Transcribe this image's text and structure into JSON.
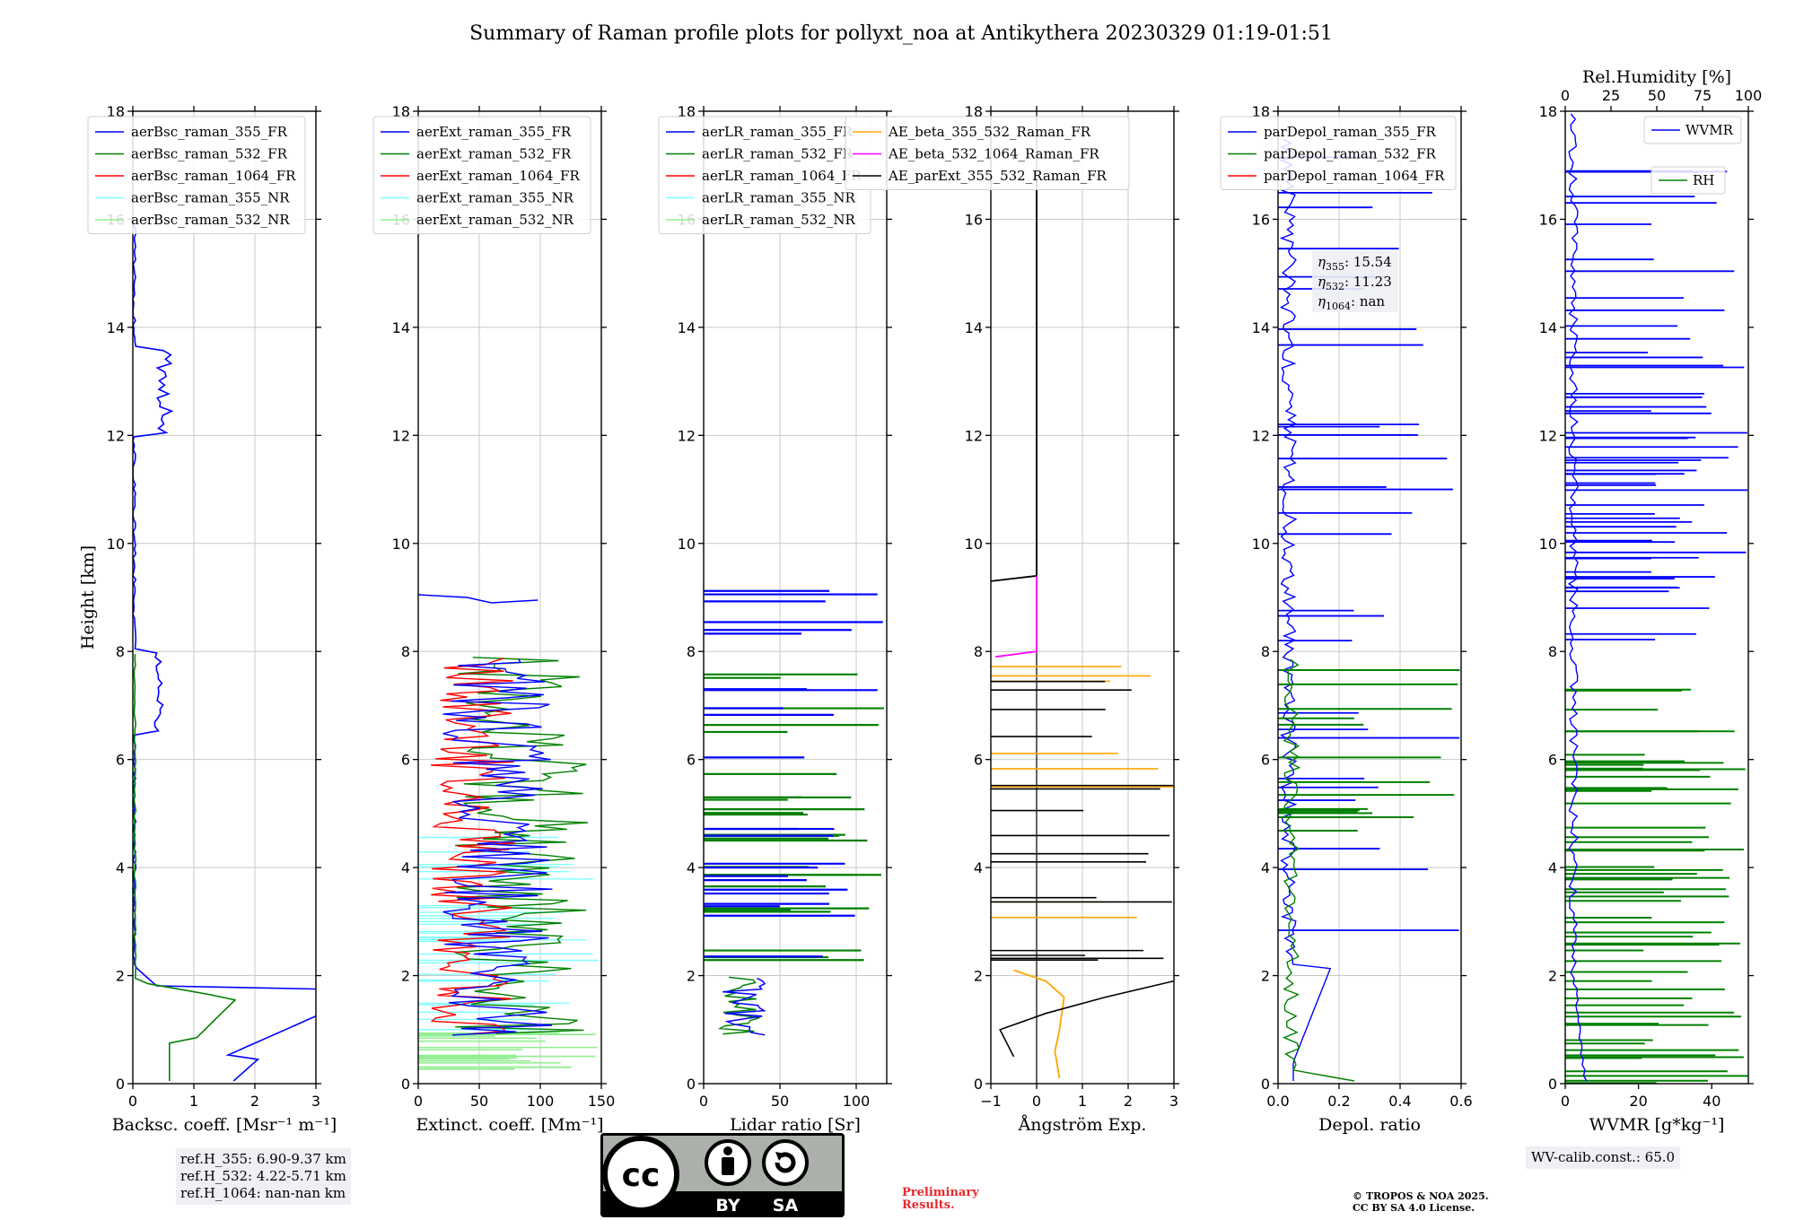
{
  "title": "Summary of Raman profile plots for pollyxt_noa at Antikythera 20230329 01:19-01:51",
  "chart_data": [
    {
      "type": "line",
      "id": "bsc",
      "xlabel": "Backsc. coeff. [Msr⁻¹ m⁻¹]",
      "ylabel": "Height [km]",
      "xlim": [
        0,
        3
      ],
      "ylim": [
        0,
        18
      ],
      "xticks": [
        "0",
        "1",
        "2",
        "3"
      ],
      "yticks": [
        "0",
        "2",
        "4",
        "6",
        "8",
        "10",
        "12",
        "14",
        "16",
        "18"
      ],
      "grid": true,
      "legend_position": "upper-left",
      "series": [
        {
          "name": "aerBsc_raman_355_FR",
          "color": "#0000ff"
        },
        {
          "name": "aerBsc_raman_532_FR",
          "color": "#008000"
        },
        {
          "name": "aerBsc_raman_1064_FR",
          "color": "#ff0000"
        },
        {
          "name": "aerBsc_raman_355_NR",
          "color": "#80ffff"
        },
        {
          "name": "aerBsc_raman_532_NR",
          "color": "#90ee90"
        }
      ]
    },
    {
      "type": "line",
      "id": "ext",
      "xlabel": "Extinct. coeff. [Mm⁻¹]",
      "xlim": [
        0,
        150
      ],
      "ylim": [
        0,
        18
      ],
      "xticks": [
        "0",
        "50",
        "100",
        "150"
      ],
      "yticks": [
        "0",
        "2",
        "4",
        "6",
        "8",
        "10",
        "12",
        "14",
        "16",
        "18"
      ],
      "grid": true,
      "legend_position": "upper-left",
      "series": [
        {
          "name": "aerExt_raman_355_FR",
          "color": "#0000ff"
        },
        {
          "name": "aerExt_raman_532_FR",
          "color": "#008000"
        },
        {
          "name": "aerExt_raman_1064_FR",
          "color": "#ff0000"
        },
        {
          "name": "aerExt_raman_355_NR",
          "color": "#80ffff"
        },
        {
          "name": "aerExt_raman_532_NR",
          "color": "#90ee90"
        }
      ]
    },
    {
      "type": "line",
      "id": "lr",
      "xlabel": "Lidar ratio [Sr]",
      "xlim": [
        0,
        120
      ],
      "ylim": [
        0,
        18
      ],
      "xticks": [
        "0",
        "50",
        "100"
      ],
      "yticks": [
        "0",
        "2",
        "4",
        "6",
        "8",
        "10",
        "12",
        "14",
        "16",
        "18"
      ],
      "grid": true,
      "legend_position": "upper-left",
      "series": [
        {
          "name": "aerLR_raman_355_FR",
          "color": "#0000ff"
        },
        {
          "name": "aerLR_raman_532_FR",
          "color": "#008000"
        },
        {
          "name": "aerLR_raman_1064_FR",
          "color": "#ff0000"
        },
        {
          "name": "aerLR_raman_355_NR",
          "color": "#80ffff"
        },
        {
          "name": "aerLR_raman_532_NR",
          "color": "#90ee90"
        }
      ]
    },
    {
      "type": "line",
      "id": "ae",
      "xlabel": "Ångström Exp.",
      "xlim": [
        -1,
        3
      ],
      "ylim": [
        0,
        18
      ],
      "xticks": [
        "−1",
        "0",
        "1",
        "2",
        "3"
      ],
      "yticks": [
        "0",
        "2",
        "4",
        "6",
        "8",
        "10",
        "12",
        "14",
        "16",
        "18"
      ],
      "grid": true,
      "legend_position": "upper-left",
      "series": [
        {
          "name": "AE_beta_355_532_Raman_FR",
          "color": "#ffa500"
        },
        {
          "name": "AE_beta_532_1064_Raman_FR",
          "color": "#ff00ff"
        },
        {
          "name": "AE_parExt_355_532_Raman_FR",
          "color": "#000000"
        }
      ]
    },
    {
      "type": "line",
      "id": "depol",
      "xlabel": "Depol. ratio",
      "xlim": [
        0,
        0.6
      ],
      "ylim": [
        0,
        18
      ],
      "xticks": [
        "0.0",
        "0.2",
        "0.4",
        "0.6"
      ],
      "yticks": [
        "0",
        "2",
        "4",
        "6",
        "8",
        "10",
        "12",
        "14",
        "16",
        "18"
      ],
      "grid": true,
      "legend_position": "upper-left",
      "series": [
        {
          "name": "parDepol_raman_355_FR",
          "color": "#0000ff"
        },
        {
          "name": "parDepol_raman_532_FR",
          "color": "#008000"
        },
        {
          "name": "parDepol_raman_1064_FR",
          "color": "#ff0000"
        }
      ],
      "eta": {
        "eta355": "15.54",
        "eta532": "11.23",
        "eta1064": "nan"
      }
    },
    {
      "type": "line",
      "id": "wv",
      "xlabel": "WVMR [g*kg⁻¹]",
      "xlabel_top": "Rel.Humidity [%]",
      "xlim": [
        0,
        50
      ],
      "xlim_top": [
        0,
        100
      ],
      "ylim": [
        0,
        18
      ],
      "xticks": [
        "0",
        "20",
        "40"
      ],
      "xticks_top": [
        "0",
        "25",
        "50",
        "75",
        "100"
      ],
      "yticks": [
        "0",
        "2",
        "4",
        "6",
        "8",
        "10",
        "12",
        "14",
        "16",
        "18"
      ],
      "grid": false,
      "series": [
        {
          "name": "WVMR",
          "color": "#0000ff"
        },
        {
          "name": "RH",
          "color": "#008000"
        }
      ]
    }
  ],
  "refH": {
    "h355": "ref.H_355: 6.90-9.37 km",
    "h532": "ref.H_532: 4.22-5.71 km",
    "h1064": "ref.H_1064: nan-nan km"
  },
  "wv_calib": "WV-calib.const.: 65.0",
  "license": {
    "by": "BY",
    "sa": "SA",
    "cc": "cc"
  },
  "preliminary": [
    "Preliminary",
    "Results."
  ],
  "copyright": [
    "© TROPOS & NOA 2025.",
    "CC BY SA 4.0 License."
  ]
}
